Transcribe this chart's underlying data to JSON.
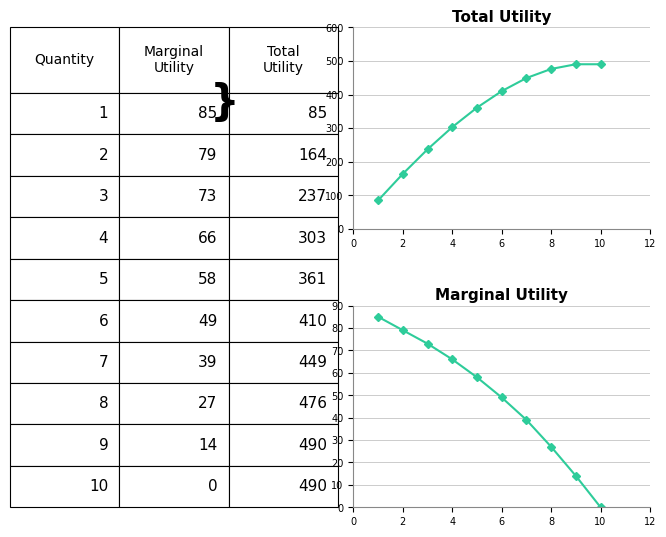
{
  "quantity": [
    1,
    2,
    3,
    4,
    5,
    6,
    7,
    8,
    9,
    10
  ],
  "marginal_utility": [
    85,
    79,
    73,
    66,
    58,
    49,
    39,
    27,
    14,
    0
  ],
  "total_utility": [
    85,
    164,
    237,
    303,
    361,
    410,
    449,
    476,
    490,
    490
  ],
  "tu_title": "Total Utility",
  "mu_title": "Marginal Utility",
  "tu_ylim": [
    0,
    600
  ],
  "tu_yticks": [
    0,
    100,
    200,
    300,
    400,
    500,
    600
  ],
  "mu_ylim": [
    0,
    90
  ],
  "mu_yticks": [
    0,
    10,
    20,
    30,
    40,
    50,
    60,
    70,
    80,
    90
  ],
  "xlim": [
    0,
    12
  ],
  "xticks": [
    0,
    2,
    4,
    6,
    8,
    10,
    12
  ],
  "line_color": "#2ecc9a",
  "marker": "D",
  "marker_size": 4,
  "bg_color": "#ffffff",
  "grid_color": "#cccccc",
  "title_fontsize": 11,
  "table_fontsize": 11
}
